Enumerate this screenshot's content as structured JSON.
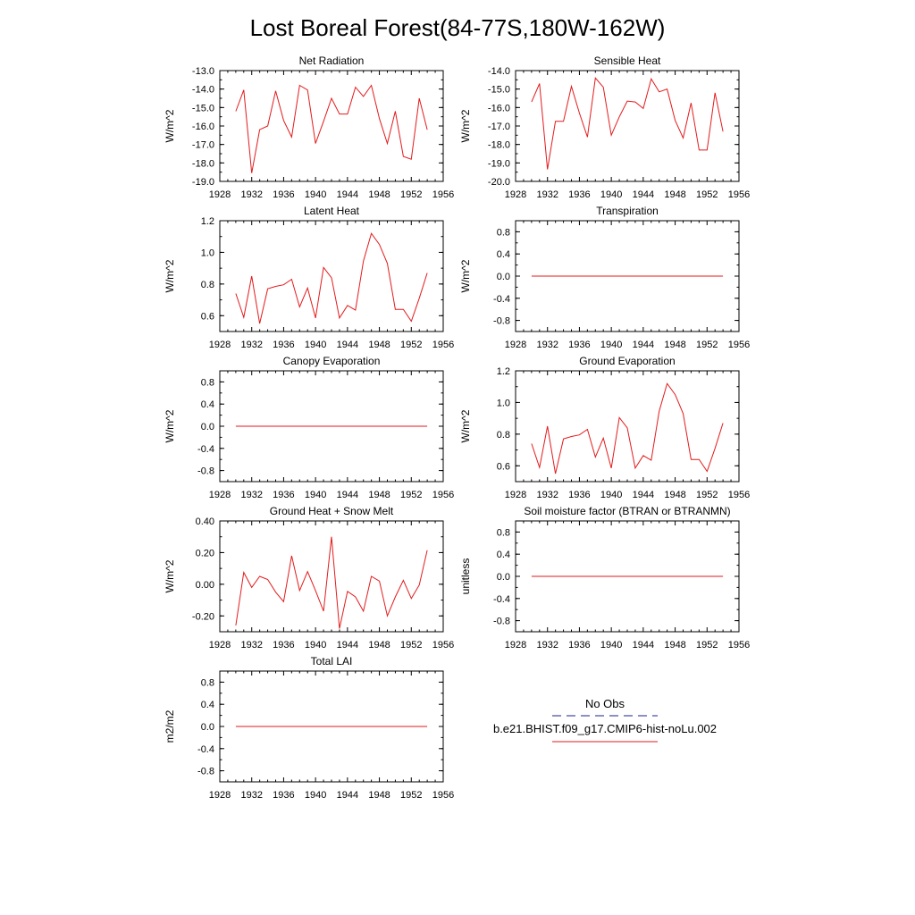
{
  "page_title": "Lost Boreal Forest(84-77S,180W-162W)",
  "legend": {
    "entries": [
      {
        "label": "No Obs",
        "color": "#1f1f8f",
        "dash": true
      },
      {
        "label": "b.e21.BHIST.f09_g17.CMIP6-hist-noLu.002",
        "color": "#e31a1c",
        "dash": false
      }
    ]
  },
  "colors": {
    "series": "#e31a1c",
    "axis": "#000000"
  },
  "chart_data": [
    {
      "type": "line",
      "title": "Net Radiation",
      "ylabel": "W/m^2",
      "xlim": [
        1928,
        1956
      ],
      "ylim": [
        -19.0,
        -13.0
      ],
      "xticks": [
        1928,
        1932,
        1936,
        1940,
        1944,
        1948,
        1952,
        1956
      ],
      "yticks": [
        -19.0,
        -18.0,
        -17.0,
        -16.0,
        -15.0,
        -14.0,
        -13.0
      ],
      "ytick_labels": [
        "-19.0",
        "-18.0",
        "-17.0",
        "-16.0",
        "-15.0",
        "-14.0",
        "-13.0"
      ],
      "x": [
        1930,
        1931,
        1932,
        1933,
        1934,
        1935,
        1936,
        1937,
        1938,
        1939,
        1940,
        1941,
        1942,
        1943,
        1944,
        1945,
        1946,
        1947,
        1948,
        1949,
        1950,
        1951,
        1952,
        1953,
        1954
      ],
      "series": [
        {
          "values": [
            -15.2,
            -14.05,
            -18.55,
            -16.2,
            -16.0,
            -14.1,
            -15.7,
            -16.6,
            -13.8,
            -14.05,
            -16.95,
            -15.75,
            -14.5,
            -15.35,
            -15.35,
            -13.9,
            -14.4,
            -13.8,
            -15.6,
            -16.95,
            -15.2,
            -17.65,
            -17.8,
            -14.5,
            -16.2
          ]
        }
      ]
    },
    {
      "type": "line",
      "title": "Sensible Heat",
      "ylabel": "W/m^2",
      "xlim": [
        1928,
        1956
      ],
      "ylim": [
        -20.0,
        -14.0
      ],
      "xticks": [
        1928,
        1932,
        1936,
        1940,
        1944,
        1948,
        1952,
        1956
      ],
      "yticks": [
        -20.0,
        -19.0,
        -18.0,
        -17.0,
        -16.0,
        -15.0,
        -14.0
      ],
      "ytick_labels": [
        "-20.0",
        "-19.0",
        "-18.0",
        "-17.0",
        "-16.0",
        "-15.0",
        "-14.0"
      ],
      "x": [
        1930,
        1931,
        1932,
        1933,
        1934,
        1935,
        1936,
        1937,
        1938,
        1939,
        1940,
        1941,
        1942,
        1943,
        1944,
        1945,
        1946,
        1947,
        1948,
        1949,
        1950,
        1951,
        1952,
        1953,
        1954
      ],
      "series": [
        {
          "values": [
            -15.7,
            -14.7,
            -19.35,
            -16.75,
            -16.75,
            -14.85,
            -16.3,
            -17.6,
            -14.4,
            -14.9,
            -17.5,
            -16.5,
            -15.65,
            -15.7,
            -16.05,
            -14.45,
            -15.15,
            -15.0,
            -16.7,
            -17.65,
            -15.75,
            -18.3,
            -18.3,
            -15.2,
            -17.3
          ]
        }
      ]
    },
    {
      "type": "line",
      "title": "Latent Heat",
      "ylabel": "W/m^2",
      "xlim": [
        1928,
        1956
      ],
      "ylim": [
        0.5,
        1.2
      ],
      "xticks": [
        1928,
        1932,
        1936,
        1940,
        1944,
        1948,
        1952,
        1956
      ],
      "yticks": [
        0.6,
        0.8,
        1.0,
        1.2
      ],
      "ytick_labels": [
        "0.6",
        "0.8",
        "1.0",
        "1.2"
      ],
      "x": [
        1930,
        1931,
        1932,
        1933,
        1934,
        1935,
        1936,
        1937,
        1938,
        1939,
        1940,
        1941,
        1942,
        1943,
        1944,
        1945,
        1946,
        1947,
        1948,
        1949,
        1950,
        1951,
        1952,
        1953,
        1954
      ],
      "series": [
        {
          "values": [
            0.74,
            0.59,
            0.85,
            0.55,
            0.77,
            0.785,
            0.795,
            0.83,
            0.655,
            0.775,
            0.585,
            0.905,
            0.84,
            0.585,
            0.665,
            0.635,
            0.945,
            1.12,
            1.05,
            0.93,
            0.64,
            0.64,
            0.565,
            0.71,
            0.87
          ]
        }
      ]
    },
    {
      "type": "line",
      "title": "Transpiration",
      "ylabel": "W/m^2",
      "xlim": [
        1928,
        1956
      ],
      "ylim": [
        -1.0,
        1.0
      ],
      "xticks": [
        1928,
        1932,
        1936,
        1940,
        1944,
        1948,
        1952,
        1956
      ],
      "yticks": [
        -0.8,
        -0.4,
        0.0,
        0.4,
        0.8
      ],
      "ytick_labels": [
        "-0.8",
        "-0.4",
        "0.0",
        "0.4",
        "0.8"
      ],
      "x": [
        1930,
        1954
      ],
      "series": [
        {
          "values": [
            0.0,
            0.0
          ]
        }
      ]
    },
    {
      "type": "line",
      "title": "Canopy Evaporation",
      "ylabel": "W/m^2",
      "xlim": [
        1928,
        1956
      ],
      "ylim": [
        -1.0,
        1.0
      ],
      "xticks": [
        1928,
        1932,
        1936,
        1940,
        1944,
        1948,
        1952,
        1956
      ],
      "yticks": [
        -0.8,
        -0.4,
        0.0,
        0.4,
        0.8
      ],
      "ytick_labels": [
        "-0.8",
        "-0.4",
        "0.0",
        "0.4",
        "0.8"
      ],
      "x": [
        1930,
        1954
      ],
      "series": [
        {
          "values": [
            0.0,
            0.0
          ]
        }
      ]
    },
    {
      "type": "line",
      "title": "Ground Evaporation",
      "ylabel": "W/m^2",
      "xlim": [
        1928,
        1956
      ],
      "ylim": [
        0.5,
        1.2
      ],
      "xticks": [
        1928,
        1932,
        1936,
        1940,
        1944,
        1948,
        1952,
        1956
      ],
      "yticks": [
        0.6,
        0.8,
        1.0,
        1.2
      ],
      "ytick_labels": [
        "0.6",
        "0.8",
        "1.0",
        "1.2"
      ],
      "x": [
        1930,
        1931,
        1932,
        1933,
        1934,
        1935,
        1936,
        1937,
        1938,
        1939,
        1940,
        1941,
        1942,
        1943,
        1944,
        1945,
        1946,
        1947,
        1948,
        1949,
        1950,
        1951,
        1952,
        1953,
        1954
      ],
      "series": [
        {
          "values": [
            0.74,
            0.59,
            0.85,
            0.55,
            0.77,
            0.785,
            0.795,
            0.83,
            0.655,
            0.775,
            0.585,
            0.905,
            0.84,
            0.585,
            0.665,
            0.635,
            0.945,
            1.12,
            1.05,
            0.93,
            0.64,
            0.64,
            0.565,
            0.71,
            0.87
          ]
        }
      ]
    },
    {
      "type": "line",
      "title": "Ground Heat + Snow Melt",
      "ylabel": "W/m^2",
      "xlim": [
        1928,
        1956
      ],
      "ylim": [
        -0.3,
        0.4
      ],
      "xticks": [
        1928,
        1932,
        1936,
        1940,
        1944,
        1948,
        1952,
        1956
      ],
      "yticks": [
        -0.2,
        0.0,
        0.2,
        0.4
      ],
      "ytick_labels": [
        "-0.20",
        "0.00",
        "0.20",
        "0.40"
      ],
      "x": [
        1930,
        1931,
        1932,
        1933,
        1934,
        1935,
        1936,
        1937,
        1938,
        1939,
        1940,
        1941,
        1942,
        1943,
        1944,
        1945,
        1946,
        1947,
        1948,
        1949,
        1950,
        1951,
        1952,
        1953,
        1954
      ],
      "series": [
        {
          "values": [
            -0.26,
            0.075,
            -0.02,
            0.05,
            0.03,
            -0.05,
            -0.11,
            0.18,
            -0.04,
            0.08,
            -0.04,
            -0.17,
            0.3,
            -0.28,
            -0.045,
            -0.08,
            -0.17,
            0.05,
            0.02,
            -0.2,
            -0.08,
            0.025,
            -0.09,
            -0.005,
            0.215
          ]
        }
      ]
    },
    {
      "type": "line",
      "title": "Soil moisture factor (BTRAN or BTRANMN)",
      "ylabel": "unitless",
      "xlim": [
        1928,
        1956
      ],
      "ylim": [
        -1.0,
        1.0
      ],
      "xticks": [
        1928,
        1932,
        1936,
        1940,
        1944,
        1948,
        1952,
        1956
      ],
      "yticks": [
        -0.8,
        -0.4,
        0.0,
        0.4,
        0.8
      ],
      "ytick_labels": [
        "-0.8",
        "-0.4",
        "0.0",
        "0.4",
        "0.8"
      ],
      "x": [
        1930,
        1954
      ],
      "series": [
        {
          "values": [
            0.0,
            0.0
          ]
        }
      ]
    },
    {
      "type": "line",
      "title": "Total LAI",
      "ylabel": "m2/m2",
      "xlim": [
        1928,
        1956
      ],
      "ylim": [
        -1.0,
        1.0
      ],
      "xticks": [
        1928,
        1932,
        1936,
        1940,
        1944,
        1948,
        1952,
        1956
      ],
      "yticks": [
        -0.8,
        -0.4,
        0.0,
        0.4,
        0.8
      ],
      "ytick_labels": [
        "-0.8",
        "-0.4",
        "0.0",
        "0.4",
        "0.8"
      ],
      "x": [
        1930,
        1954
      ],
      "series": [
        {
          "values": [
            0.0,
            0.0
          ]
        }
      ]
    }
  ]
}
